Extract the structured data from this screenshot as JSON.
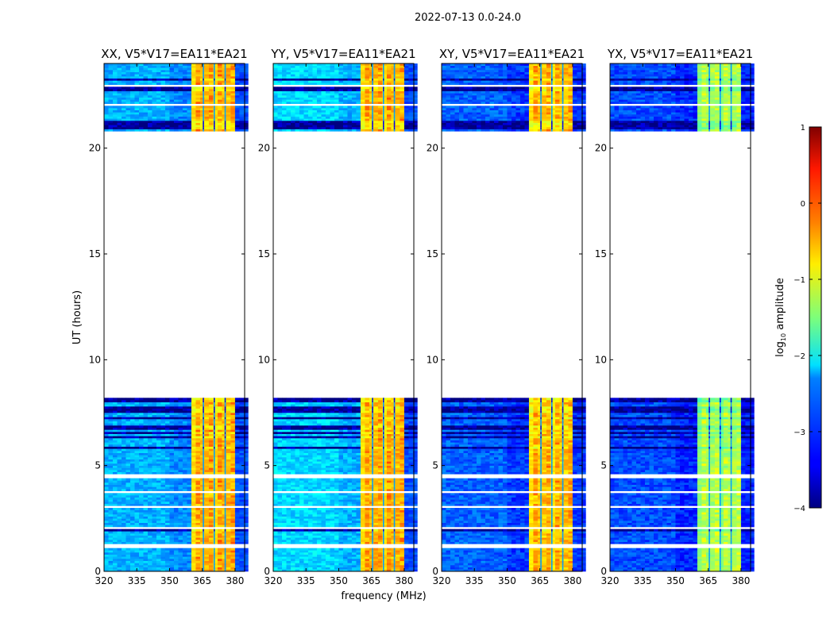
{
  "chart_data": {
    "type": "heatmap",
    "title": "2022-07-13 0.0-24.0",
    "xlabel": "frequency (MHz)",
    "ylabel": "UT (hours)",
    "xlim": [
      320,
      384.4
    ],
    "ylim": [
      0,
      24
    ],
    "xticks": [
      320,
      335,
      350,
      365,
      380
    ],
    "yticks": [
      0,
      5,
      10,
      15,
      20
    ],
    "data_time_ranges_hours": [
      [
        0,
        8.7
      ],
      [
        20.8,
        24
      ]
    ],
    "bright_band_mhz": [
      361,
      380
    ],
    "subband_gaps_mhz": [
      365.5,
      370.5,
      375.5
    ],
    "flagged_white_hours": [
      [
        1.15,
        1.35
      ],
      [
        4.45,
        4.62
      ],
      [
        8.25,
        8.7
      ],
      [
        0.1,
        0.15
      ],
      [
        1.6,
        1.65
      ],
      [
        2.05,
        2.1
      ],
      [
        3.05,
        3.1
      ],
      [
        3.5,
        3.55
      ],
      [
        3.75,
        3.8
      ],
      [
        21.8,
        21.85
      ],
      [
        22.05,
        22.1
      ],
      [
        22.5,
        22.55
      ],
      [
        22.95,
        23.0
      ]
    ],
    "dark_row_ranges_hours": [
      [
        5.5,
        8.2
      ],
      [
        20.8,
        21.6
      ],
      [
        22.6,
        23.3
      ],
      [
        1.8,
        2.2
      ]
    ],
    "panels": [
      {
        "title": "XX, V5*V17=EA11*EA21",
        "offband_log_amp": -2.5,
        "band_log_amp": -0.7,
        "band_peak_log_amp": -0.2,
        "high_freq_log_amp": -3.0
      },
      {
        "title": "YY, V5*V17=EA11*EA21",
        "offband_log_amp": -2.3,
        "band_log_amp": -0.7,
        "band_peak_log_amp": -0.2,
        "high_freq_log_amp": -3.0
      },
      {
        "title": "XY, V5*V17=EA11*EA21",
        "offband_log_amp": -2.9,
        "band_log_amp": -0.75,
        "band_peak_log_amp": -0.25,
        "high_freq_log_amp": -3.1
      },
      {
        "title": "YX, V5*V17=EA11*EA21",
        "offband_log_amp": -3.0,
        "band_log_amp": -1.45,
        "band_peak_log_amp": -1.0,
        "high_freq_log_amp": -3.2
      }
    ],
    "colorbar": {
      "label": "log",
      "label_sub": "10",
      "label_rest": " amplitude",
      "range": [
        -4,
        1
      ],
      "ticks": [
        -4,
        -3,
        -2,
        -1,
        0,
        1
      ],
      "colormap": "jet"
    }
  }
}
